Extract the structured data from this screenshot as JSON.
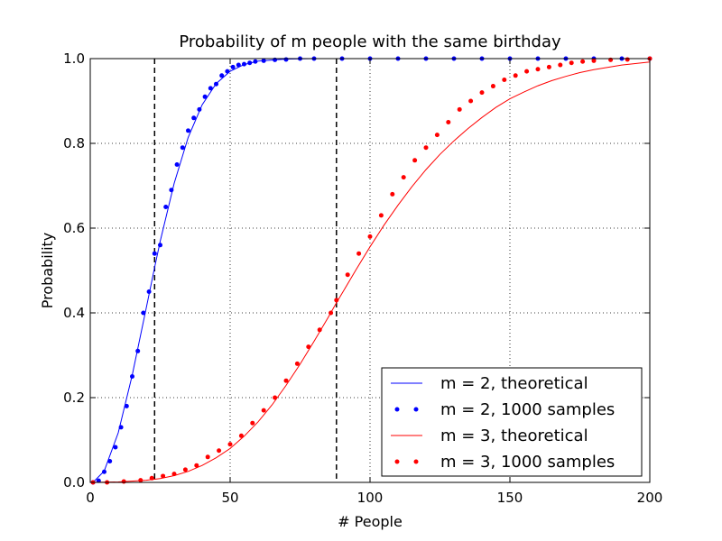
{
  "chart_data": {
    "type": "line",
    "title": "Probability of m people with the same birthday",
    "xlabel": "# People",
    "ylabel": "Probability",
    "xlim": [
      0,
      200
    ],
    "ylim": [
      0,
      1
    ],
    "xticks": [
      0,
      50,
      100,
      150,
      200
    ],
    "xtick_labels": [
      "0",
      "50",
      "100",
      "150",
      "200"
    ],
    "yticks": [
      0,
      0.2,
      0.4,
      0.6,
      0.8,
      1.0
    ],
    "ytick_labels": [
      "0.0",
      "0.2",
      "0.4",
      "0.6",
      "0.8",
      "1.0"
    ],
    "grid": true,
    "legend_position": "bottom-right",
    "vlines": [
      23,
      88
    ],
    "series": [
      {
        "name": "m = 2, theoretical",
        "style": "line",
        "color": "#0000ff",
        "x": [
          1,
          5,
          10,
          15,
          20,
          23,
          25,
          30,
          35,
          40,
          45,
          50,
          55,
          60,
          70,
          80,
          100,
          150,
          200
        ],
        "y": [
          0,
          0.027,
          0.117,
          0.253,
          0.411,
          0.507,
          0.569,
          0.706,
          0.814,
          0.891,
          0.941,
          0.97,
          0.986,
          0.994,
          0.999,
          1.0,
          1.0,
          1.0,
          1.0
        ]
      },
      {
        "name": "m = 2, 1000 samples",
        "style": "dots",
        "color": "#0000ff",
        "x": [
          1,
          3,
          5,
          7,
          9,
          11,
          13,
          15,
          17,
          19,
          21,
          23,
          25,
          27,
          29,
          31,
          33,
          35,
          37,
          39,
          41,
          43,
          45,
          47,
          49,
          51,
          53,
          55,
          57,
          59,
          62,
          66,
          70,
          75,
          80,
          90,
          100,
          110,
          120,
          130,
          140,
          150,
          160,
          170,
          180,
          190,
          200
        ],
        "y": [
          0,
          0.004,
          0.025,
          0.05,
          0.083,
          0.13,
          0.18,
          0.25,
          0.31,
          0.4,
          0.45,
          0.54,
          0.56,
          0.65,
          0.69,
          0.75,
          0.79,
          0.83,
          0.86,
          0.88,
          0.91,
          0.93,
          0.94,
          0.96,
          0.97,
          0.98,
          0.985,
          0.987,
          0.99,
          0.993,
          0.995,
          0.997,
          0.998,
          1.0,
          1.0,
          1.0,
          1.0,
          1.0,
          1.0,
          1.0,
          1.0,
          1.0,
          1.0,
          1.0,
          1.0,
          1.0,
          1.0
        ]
      },
      {
        "name": "m = 3, theoretical",
        "style": "line",
        "color": "#ff0000",
        "x": [
          1,
          10,
          20,
          25,
          30,
          35,
          40,
          45,
          50,
          55,
          60,
          65,
          70,
          75,
          80,
          85,
          88,
          90,
          95,
          100,
          105,
          110,
          115,
          120,
          125,
          130,
          135,
          140,
          145,
          150,
          155,
          160,
          165,
          170,
          175,
          180,
          190,
          200
        ],
        "y": [
          0,
          0.001,
          0.005,
          0.009,
          0.016,
          0.026,
          0.04,
          0.058,
          0.08,
          0.109,
          0.143,
          0.183,
          0.229,
          0.279,
          0.333,
          0.389,
          0.424,
          0.446,
          0.502,
          0.556,
          0.607,
          0.654,
          0.698,
          0.738,
          0.774,
          0.806,
          0.835,
          0.861,
          0.885,
          0.905,
          0.921,
          0.936,
          0.948,
          0.958,
          0.967,
          0.974,
          0.985,
          0.992
        ]
      },
      {
        "name": "m = 3, 1000 samples",
        "style": "dots",
        "color": "#ff0000",
        "x": [
          1,
          6,
          12,
          18,
          22,
          26,
          30,
          34,
          38,
          42,
          46,
          50,
          54,
          58,
          62,
          66,
          70,
          74,
          78,
          82,
          86,
          88,
          92,
          96,
          100,
          104,
          108,
          112,
          116,
          120,
          124,
          128,
          132,
          136,
          140,
          144,
          148,
          152,
          156,
          160,
          164,
          168,
          172,
          176,
          180,
          186,
          192,
          200
        ],
        "y": [
          0,
          0,
          0.002,
          0.005,
          0.01,
          0.015,
          0.02,
          0.03,
          0.04,
          0.06,
          0.075,
          0.09,
          0.11,
          0.14,
          0.17,
          0.2,
          0.24,
          0.28,
          0.32,
          0.36,
          0.4,
          0.43,
          0.49,
          0.54,
          0.58,
          0.63,
          0.68,
          0.72,
          0.76,
          0.79,
          0.82,
          0.85,
          0.88,
          0.9,
          0.92,
          0.935,
          0.95,
          0.96,
          0.97,
          0.975,
          0.98,
          0.985,
          0.99,
          0.993,
          0.995,
          0.997,
          0.998,
          1.0
        ]
      }
    ]
  }
}
